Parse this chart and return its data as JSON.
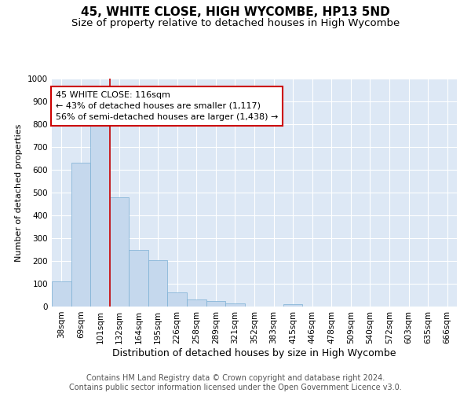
{
  "title": "45, WHITE CLOSE, HIGH WYCOMBE, HP13 5ND",
  "subtitle": "Size of property relative to detached houses in High Wycombe",
  "xlabel": "Distribution of detached houses by size in High Wycombe",
  "ylabel": "Number of detached properties",
  "footer_line1": "Contains HM Land Registry data © Crown copyright and database right 2024.",
  "footer_line2": "Contains public sector information licensed under the Open Government Licence v3.0.",
  "categories": [
    "38sqm",
    "69sqm",
    "101sqm",
    "132sqm",
    "164sqm",
    "195sqm",
    "226sqm",
    "258sqm",
    "289sqm",
    "321sqm",
    "352sqm",
    "383sqm",
    "415sqm",
    "446sqm",
    "478sqm",
    "509sqm",
    "540sqm",
    "572sqm",
    "603sqm",
    "635sqm",
    "666sqm"
  ],
  "values": [
    110,
    630,
    810,
    480,
    250,
    205,
    62,
    30,
    23,
    15,
    0,
    0,
    12,
    0,
    0,
    0,
    0,
    0,
    0,
    0,
    0
  ],
  "bar_color": "#c5d8ed",
  "bar_edge_color": "#7bafd4",
  "annotation_box_color": "#cc0000",
  "annotation_title": "45 WHITE CLOSE: 116sqm",
  "annotation_line1": "← 43% of detached houses are smaller (1,117)",
  "annotation_line2": "56% of semi-detached houses are larger (1,438) →",
  "ylim": [
    0,
    1000
  ],
  "yticks": [
    0,
    100,
    200,
    300,
    400,
    500,
    600,
    700,
    800,
    900,
    1000
  ],
  "background_color": "#dde8f5",
  "grid_color": "#ffffff",
  "title_fontsize": 11,
  "subtitle_fontsize": 9.5,
  "xlabel_fontsize": 9,
  "ylabel_fontsize": 8,
  "tick_fontsize": 7.5,
  "annotation_fontsize": 8,
  "footer_fontsize": 7
}
